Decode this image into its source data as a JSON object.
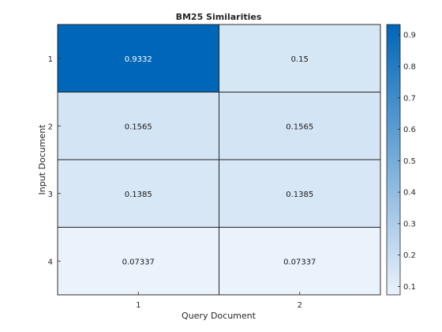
{
  "chart_data": {
    "type": "heatmap",
    "title": "BM25 Similarities",
    "xlabel": "Query Document",
    "ylabel": "Input Document",
    "x_categories": [
      "1",
      "2"
    ],
    "y_categories": [
      "1",
      "2",
      "3",
      "4"
    ],
    "values": [
      [
        0.9332,
        0.15
      ],
      [
        0.1565,
        0.1565
      ],
      [
        0.1385,
        0.1385
      ],
      [
        0.07337,
        0.07337
      ]
    ],
    "cell_labels": [
      [
        "0.9332",
        "0.15"
      ],
      [
        "0.1565",
        "0.1565"
      ],
      [
        "0.1385",
        "0.1385"
      ],
      [
        "0.07337",
        "0.07337"
      ]
    ],
    "colorbar": {
      "range": [
        0.07337,
        0.9332
      ],
      "ticks": [
        0.1,
        0.2,
        0.3,
        0.4,
        0.5,
        0.6,
        0.7,
        0.8,
        0.9
      ],
      "tick_labels": [
        "0.1",
        "0.2",
        "0.3",
        "0.4",
        "0.5",
        "0.6",
        "0.7",
        "0.8",
        "0.9"
      ]
    },
    "colormap": {
      "low": "#eaf2fb",
      "high": "#0066b8"
    },
    "grid": true
  }
}
